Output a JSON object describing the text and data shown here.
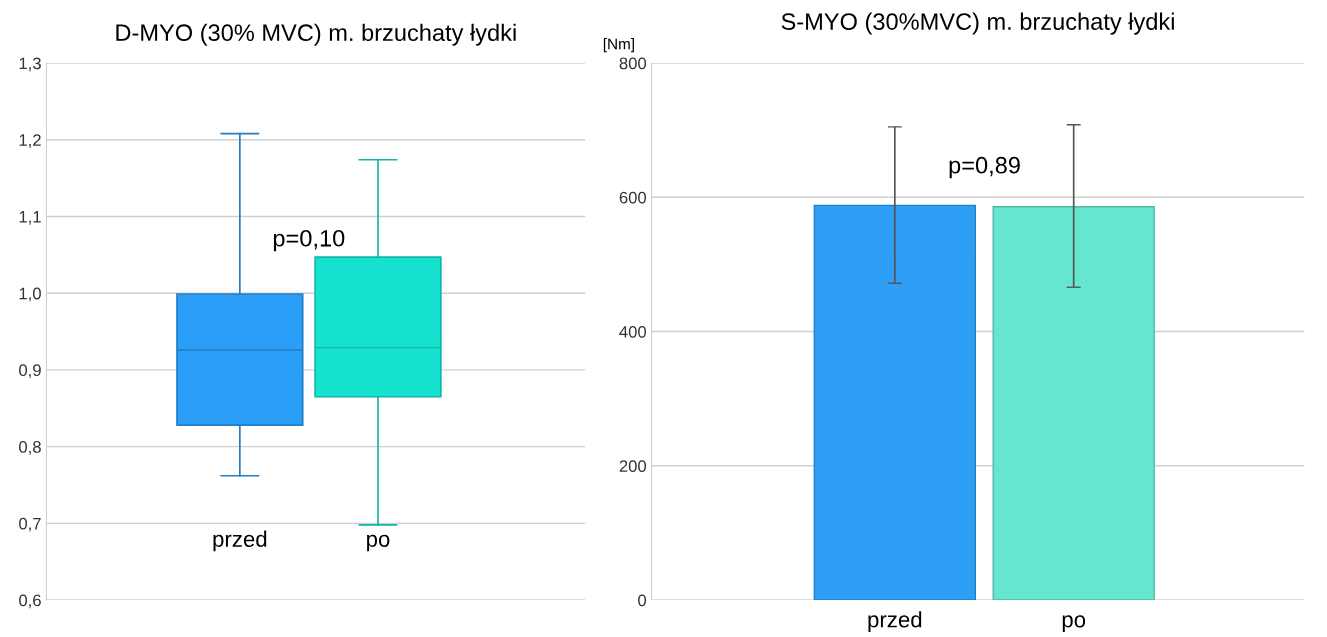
{
  "chart_data": [
    {
      "type": "box",
      "title": "D-MYO (30% MVC) m. brzuchaty łydki",
      "categories": [
        "przed",
        "po"
      ],
      "boxes": [
        {
          "low": 0.762,
          "q1": 0.828,
          "median": 0.926,
          "q3": 0.999,
          "high": 1.208
        },
        {
          "low": 0.698,
          "q1": 0.865,
          "median": 0.929,
          "q3": 1.047,
          "high": 1.174
        }
      ],
      "colors": [
        "#2b9ef8",
        "#15e3d0"
      ],
      "ylim": [
        0.6,
        1.3
      ],
      "yticks": [
        {
          "value": 0.6,
          "label": "0,6"
        },
        {
          "value": 0.7,
          "label": "0,7"
        },
        {
          "value": 0.8,
          "label": "0,8"
        },
        {
          "value": 0.9,
          "label": "0,9"
        },
        {
          "value": 1.0,
          "label": "1,0"
        },
        {
          "value": 1.1,
          "label": "1,1"
        },
        {
          "value": 1.2,
          "label": "1,2"
        },
        {
          "value": 1.3,
          "label": "1,3"
        }
      ],
      "grid": "y",
      "annotations": [
        "p=0,10"
      ]
    },
    {
      "type": "bar",
      "title": "S-MYO (30%MVC) m. brzuchaty łydki",
      "ylabel": "[Nm]",
      "categories": [
        "przed",
        "po"
      ],
      "values": [
        588,
        586
      ],
      "errors": [
        [
          472,
          705
        ],
        [
          466,
          708
        ]
      ],
      "colors": [
        "#2e9ff5",
        "#66e6d0"
      ],
      "ylim": [
        0,
        800
      ],
      "yticks": [
        0,
        200,
        400,
        600,
        800
      ],
      "grid": "y",
      "annotations": [
        "p=0,89"
      ]
    }
  ]
}
